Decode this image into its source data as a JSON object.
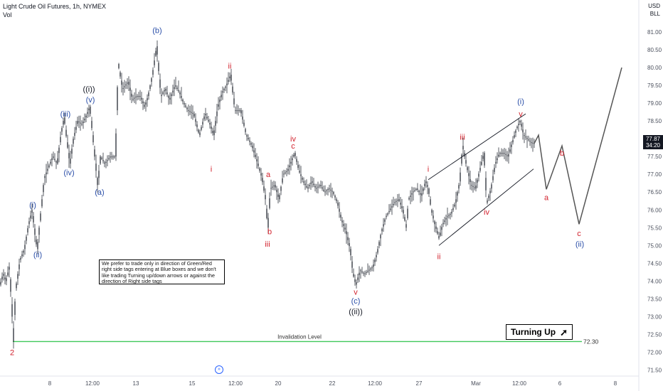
{
  "header": {
    "title": "Light Crude Oil Futures, 1h, NYMEX",
    "indicator": "Vol"
  },
  "axis_header": {
    "currency": "USD",
    "unit": "BLL"
  },
  "price_box": {
    "price": "77.87",
    "countdown": "34:20"
  },
  "note_text": "We prefer to trade only in direction of Green/Red right side tags entering at Blue boxes and we don't like trading Turning up/down arrows or against the direction of Right side tags",
  "turning_label": "Turning Up",
  "colors": {
    "candle": "#131722",
    "wave_blue": "#2a4ea8",
    "wave_red": "#d2222d",
    "wave_dark": "#131722",
    "invalidation": "#3fc85a",
    "projection": "#555555",
    "channel": "#131722"
  },
  "chart_data": {
    "type": "candlestick",
    "y_axis": {
      "ticks": [
        "81.00",
        "80.50",
        "80.00",
        "79.50",
        "79.00",
        "78.50",
        "78.00",
        "77.50",
        "77.00",
        "76.50",
        "76.00",
        "75.50",
        "75.00",
        "74.50",
        "74.00",
        "73.50",
        "73.00",
        "72.50",
        "72.00",
        "71.50"
      ],
      "range": [
        71.35,
        81.3
      ]
    },
    "x_axis": {
      "ticks": [
        {
          "label": "8",
          "t": 70
        },
        {
          "label": "12:00",
          "t": 130
        },
        {
          "label": "13",
          "t": 191
        },
        {
          "label": "15",
          "t": 270
        },
        {
          "label": "12:00",
          "t": 331
        },
        {
          "label": "20",
          "t": 391
        },
        {
          "label": "22",
          "t": 467
        },
        {
          "label": "12:00",
          "t": 527
        },
        {
          "label": "27",
          "t": 589
        },
        {
          "label": "Mar",
          "t": 669
        },
        {
          "label": "12:00",
          "t": 730
        },
        {
          "label": "6",
          "t": 787
        },
        {
          "label": "8",
          "t": 865
        }
      ]
    },
    "price_path": [
      [
        0,
        73.9
      ],
      [
        4,
        74.2
      ],
      [
        8,
        74.0
      ],
      [
        13,
        74.4
      ],
      [
        17,
        73.0
      ],
      [
        18,
        72.3
      ],
      [
        22,
        73.8
      ],
      [
        28,
        74.6
      ],
      [
        34,
        74.9
      ],
      [
        40,
        75.6
      ],
      [
        45,
        76.0
      ],
      [
        49,
        75.3
      ],
      [
        52,
        74.9
      ],
      [
        56,
        75.7
      ],
      [
        62,
        76.9
      ],
      [
        68,
        77.2
      ],
      [
        74,
        77.5
      ],
      [
        80,
        77.3
      ],
      [
        86,
        78.2
      ],
      [
        90,
        78.6
      ],
      [
        94,
        77.9
      ],
      [
        98,
        77.3
      ],
      [
        103,
        78.0
      ],
      [
        109,
        78.5
      ],
      [
        115,
        78.4
      ],
      [
        120,
        78.6
      ],
      [
        126,
        78.9
      ],
      [
        131,
        77.9
      ],
      [
        137,
        76.7
      ],
      [
        141,
        77.5
      ],
      [
        147,
        77.3
      ],
      [
        155,
        77.5
      ],
      [
        162,
        77.5
      ],
      [
        166,
        80.1
      ],
      [
        172,
        79.4
      ],
      [
        180,
        79.6
      ],
      [
        186,
        79.1
      ],
      [
        192,
        79.2
      ],
      [
        197,
        79.2
      ],
      [
        203,
        78.9
      ],
      [
        208,
        79.2
      ],
      [
        214,
        79.8
      ],
      [
        220,
        80.6
      ],
      [
        226,
        79.2
      ],
      [
        232,
        79.4
      ],
      [
        238,
        79.1
      ],
      [
        246,
        79.5
      ],
      [
        252,
        79.3
      ],
      [
        258,
        79.0
      ],
      [
        264,
        78.8
      ],
      [
        272,
        78.7
      ],
      [
        280,
        78.1
      ],
      [
        288,
        78.7
      ],
      [
        295,
        78.4
      ],
      [
        300,
        78.1
      ],
      [
        306,
        78.9
      ],
      [
        312,
        79.3
      ],
      [
        318,
        79.5
      ],
      [
        324,
        79.8
      ],
      [
        330,
        78.8
      ],
      [
        338,
        78.8
      ],
      [
        346,
        78.1
      ],
      [
        354,
        77.8
      ],
      [
        362,
        77.3
      ],
      [
        368,
        76.9
      ],
      [
        373,
        76.3
      ],
      [
        376,
        75.5
      ],
      [
        380,
        76.6
      ],
      [
        386,
        76.7
      ],
      [
        392,
        76.3
      ],
      [
        398,
        77.0
      ],
      [
        404,
        77.1
      ],
      [
        410,
        77.4
      ],
      [
        414,
        77.6
      ],
      [
        420,
        77.1
      ],
      [
        426,
        76.8
      ],
      [
        432,
        76.6
      ],
      [
        438,
        76.8
      ],
      [
        444,
        76.6
      ],
      [
        450,
        76.7
      ],
      [
        456,
        76.5
      ],
      [
        462,
        76.6
      ],
      [
        468,
        76.5
      ],
      [
        474,
        76.2
      ],
      [
        480,
        75.7
      ],
      [
        486,
        75.4
      ],
      [
        492,
        74.9
      ],
      [
        496,
        74.2
      ],
      [
        500,
        73.9
      ],
      [
        506,
        74.3
      ],
      [
        512,
        74.2
      ],
      [
        518,
        74.3
      ],
      [
        524,
        74.4
      ],
      [
        530,
        74.8
      ],
      [
        536,
        75.4
      ],
      [
        542,
        75.8
      ],
      [
        548,
        76.0
      ],
      [
        554,
        76.2
      ],
      [
        560,
        76.3
      ],
      [
        566,
        76.0
      ],
      [
        571,
        75.5
      ],
      [
        574,
        76.3
      ],
      [
        580,
        76.5
      ],
      [
        586,
        76.6
      ],
      [
        592,
        76.4
      ],
      [
        598,
        76.8
      ],
      [
        602,
        76.6
      ],
      [
        606,
        76.0
      ],
      [
        611,
        75.6
      ],
      [
        617,
        75.2
      ],
      [
        622,
        75.6
      ],
      [
        628,
        75.8
      ],
      [
        634,
        75.9
      ],
      [
        640,
        76.2
      ],
      [
        646,
        76.8
      ],
      [
        650,
        77.8
      ],
      [
        656,
        77.2
      ],
      [
        662,
        76.7
      ],
      [
        668,
        76.6
      ],
      [
        674,
        77.1
      ],
      [
        680,
        77.6
      ],
      [
        684,
        76.2
      ],
      [
        690,
        76.6
      ],
      [
        696,
        77.3
      ],
      [
        702,
        77.6
      ],
      [
        708,
        77.6
      ],
      [
        714,
        77.5
      ],
      [
        720,
        77.9
      ],
      [
        726,
        78.3
      ],
      [
        731,
        78.5
      ],
      [
        736,
        78.1
      ],
      [
        741,
        78.0
      ],
      [
        746,
        77.9
      ],
      [
        751,
        77.87
      ]
    ],
    "projection": [
      {
        "t": 751,
        "price": 77.87
      },
      {
        "t": 757,
        "price": 78.1
      },
      {
        "t": 768,
        "price": 76.58
      },
      {
        "t": 790,
        "price": 77.8
      },
      {
        "t": 814,
        "price": 75.6
      },
      {
        "t": 874,
        "price": 80.0
      }
    ],
    "channel": [
      {
        "from": {
          "t": 602,
          "price": 76.85
        },
        "to": {
          "t": 739,
          "price": 78.7
        }
      },
      {
        "from": {
          "t": 617,
          "price": 75.0
        },
        "to": {
          "t": 750,
          "price": 77.15
        }
      }
    ],
    "invalidation": {
      "label": "Invalidation Level",
      "value_label": "72.30",
      "price": 72.3
    },
    "wave_labels": [
      {
        "text": "2",
        "t": 17,
        "price": 72.0,
        "color": "red"
      },
      {
        "text": "(i)",
        "t": 46,
        "price": 76.15,
        "color": "blue"
      },
      {
        "text": "(ii)",
        "t": 53,
        "price": 74.75,
        "color": "blue"
      },
      {
        "text": "(iii)",
        "t": 92,
        "price": 78.7,
        "color": "blue"
      },
      {
        "text": "(iv)",
        "t": 97,
        "price": 77.05,
        "color": "blue"
      },
      {
        "text": "(v)",
        "t": 127,
        "price": 79.1,
        "color": "blue"
      },
      {
        "text": "((i))",
        "t": 125,
        "price": 79.4,
        "color": "dark"
      },
      {
        "text": "(a)",
        "t": 140,
        "price": 76.5,
        "color": "blue"
      },
      {
        "text": "(b)",
        "t": 221,
        "price": 81.05,
        "color": "blue"
      },
      {
        "text": "ii",
        "t": 323,
        "price": 80.05,
        "color": "red"
      },
      {
        "text": "i",
        "t": 297,
        "price": 77.15,
        "color": "red"
      },
      {
        "text": "iv",
        "t": 412,
        "price": 78.0,
        "color": "red"
      },
      {
        "text": "c",
        "t": 412,
        "price": 77.8,
        "color": "red"
      },
      {
        "text": "a",
        "t": 377,
        "price": 77.0,
        "color": "red"
      },
      {
        "text": "b",
        "t": 379,
        "price": 75.4,
        "color": "red"
      },
      {
        "text": "iii",
        "t": 376,
        "price": 75.05,
        "color": "red"
      },
      {
        "text": "v",
        "t": 500,
        "price": 73.7,
        "color": "red"
      },
      {
        "text": "(c)",
        "t": 500,
        "price": 73.45,
        "color": "blue"
      },
      {
        "text": "((ii))",
        "t": 500,
        "price": 73.15,
        "color": "dark"
      },
      {
        "text": "i",
        "t": 602,
        "price": 77.15,
        "color": "red"
      },
      {
        "text": "ii",
        "t": 617,
        "price": 74.7,
        "color": "red"
      },
      {
        "text": "iii",
        "t": 650,
        "price": 78.05,
        "color": "red"
      },
      {
        "text": "iv",
        "t": 684,
        "price": 75.95,
        "color": "red"
      },
      {
        "text": "(i)",
        "t": 732,
        "price": 79.05,
        "color": "blue"
      },
      {
        "text": "v",
        "t": 732,
        "price": 78.7,
        "color": "red"
      },
      {
        "text": "a",
        "t": 768,
        "price": 76.35,
        "color": "red"
      },
      {
        "text": "b",
        "t": 790,
        "price": 77.6,
        "color": "red"
      },
      {
        "text": "c",
        "t": 814,
        "price": 75.35,
        "color": "red"
      },
      {
        "text": "(ii)",
        "t": 815,
        "price": 75.05,
        "color": "blue"
      }
    ]
  }
}
